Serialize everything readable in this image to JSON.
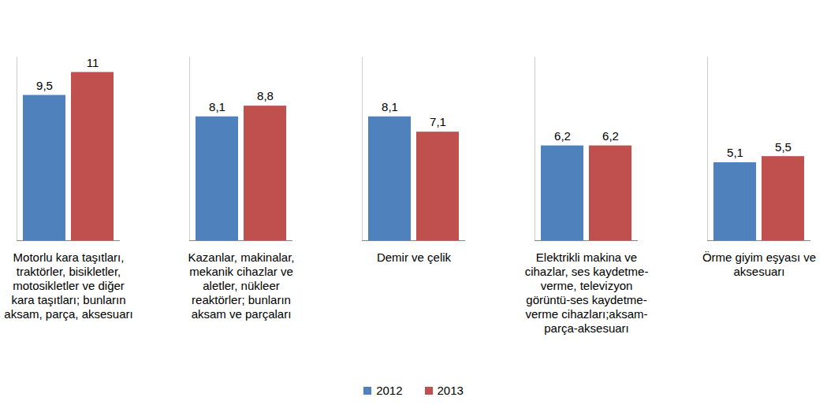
{
  "chart_data": {
    "type": "bar",
    "categories": [
      "Motorlu kara taşıtları,\ntraktörler, bisikletler,\nmotosikletler ve diğer\nkara taşıtları; bunların\naksam, parça, aksesuarı",
      "Kazanlar, makinalar,\nmekanik cihazlar ve\naletler, nükleer\nreaktörler; bunların\naksam ve parçaları",
      "Demir ve çelik",
      "Elektrikli makina ve\ncihazlar, ses kaydetme-\nverme, televizyon\ngörüntü-ses kaydetme-\nverme cihazları;aksam-\nparça-aksesuarı",
      "Örme giyim eşyası ve\naksesuarı"
    ],
    "series": [
      {
        "name": "2012",
        "color": "#4f81bd",
        "values": [
          9.5,
          8.1,
          8.1,
          6.2,
          5.1
        ],
        "value_labels": [
          "9,5",
          "8,1",
          "8,1",
          "6,2",
          "5,1"
        ]
      },
      {
        "name": "2013",
        "color": "#c0504d",
        "values": [
          11,
          8.8,
          7.1,
          6.2,
          5.5
        ],
        "value_labels": [
          "11",
          "8,8",
          "7,1",
          "6,2",
          "5,5"
        ]
      }
    ],
    "ylim": [
      0,
      12
    ],
    "data_labels": true,
    "tick_labels": "x",
    "legend": "bottom"
  }
}
